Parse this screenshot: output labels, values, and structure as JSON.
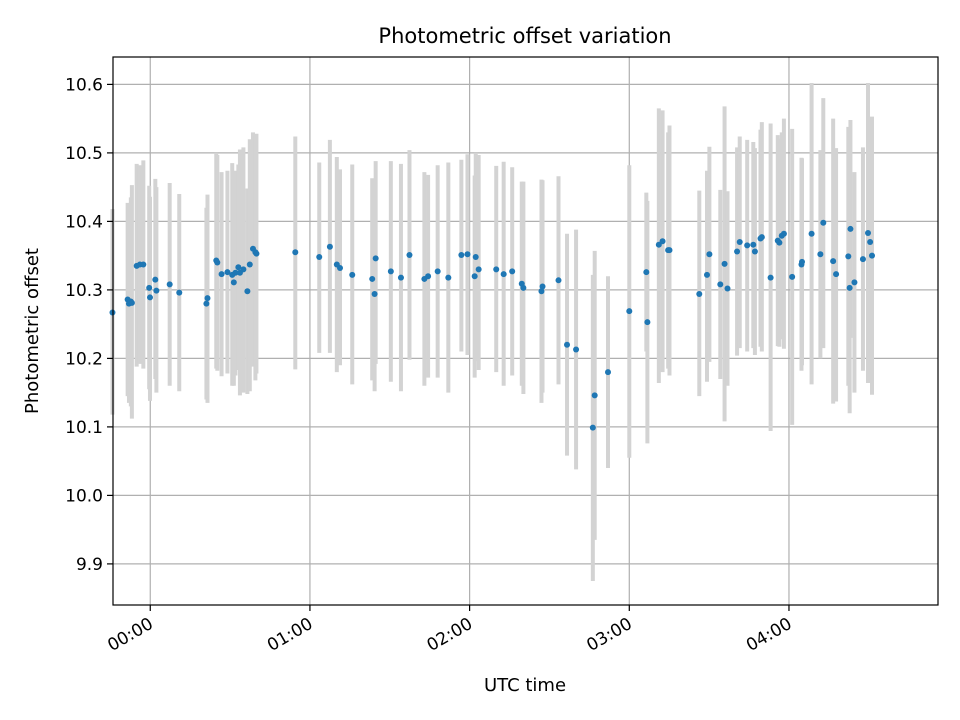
{
  "chart_data": {
    "type": "scatter",
    "title": "Photometric offset variation",
    "xlabel": "UTC time",
    "ylabel": "Photometric offset",
    "xlim_minutes": [
      -14,
      296
    ],
    "ylim": [
      9.84,
      10.64
    ],
    "x_ticks": [
      {
        "label": "00:00",
        "minutes": 0
      },
      {
        "label": "01:00",
        "minutes": 60
      },
      {
        "label": "02:00",
        "minutes": 120
      },
      {
        "label": "03:00",
        "minutes": 180
      },
      {
        "label": "04:00",
        "minutes": 240
      }
    ],
    "y_ticks": [
      {
        "label": "9.9",
        "value": 9.9
      },
      {
        "label": "10.0",
        "value": 10.0
      },
      {
        "label": "10.1",
        "value": 10.1
      },
      {
        "label": "10.2",
        "value": 10.2
      },
      {
        "label": "10.3",
        "value": 10.3
      },
      {
        "label": "10.4",
        "value": 10.4
      },
      {
        "label": "10.5",
        "value": 10.5
      },
      {
        "label": "10.6",
        "value": 10.6
      }
    ],
    "grid": true,
    "colors": {
      "points": "#1f77b4",
      "errorbars": "#d3d3d3",
      "grid": "#b0b0b0"
    },
    "series": [
      {
        "x_minutes": [
          -14.2,
          -8.5,
          -8.0,
          -7.3,
          -6.9,
          -5.1,
          -3.9,
          -2.6,
          -0.4,
          -0.1,
          1.9,
          2.3,
          7.3,
          10.9,
          21.1,
          21.5,
          24.8,
          25.2,
          26.8,
          29.0,
          30.8,
          31.4,
          32.0,
          33.1,
          33.7,
          35.0,
          36.5,
          37.4,
          38.6,
          39.5,
          39.9,
          54.5,
          63.5,
          67.5,
          70.1,
          71.3,
          75.9,
          83.4,
          84.3,
          84.7,
          90.4,
          94.2,
          97.4,
          103.0,
          104.4,
          108.0,
          112.0,
          116.9,
          119.2,
          121.9,
          122.3,
          123.4,
          130.0,
          132.8,
          136.0,
          139.6,
          140.2,
          147.0,
          147.4,
          153.4,
          156.6,
          160.0,
          167.0,
          166.3,
          172.0,
          180.0,
          186.4,
          186.8,
          191.1,
          192.5,
          194.6,
          195.1,
          206.3,
          209.2,
          210.1,
          214.2,
          215.8,
          216.9,
          220.5,
          221.5,
          224.3,
          226.6,
          227.2,
          229.3,
          229.8,
          233.1,
          235.8,
          236.4,
          238.1,
          237.3,
          241.2,
          244.7,
          244.9,
          248.5,
          251.8,
          252.9,
          256.6,
          257.7,
          262.3,
          262.8,
          263.1,
          264.6,
          267.8,
          269.7,
          270.5,
          271.2
        ],
        "y": [
          10.267,
          10.286,
          10.28,
          10.283,
          10.281,
          10.335,
          10.337,
          10.337,
          10.303,
          10.289,
          10.315,
          10.299,
          10.308,
          10.296,
          10.28,
          10.288,
          10.343,
          10.34,
          10.323,
          10.326,
          10.322,
          10.311,
          10.325,
          10.333,
          10.325,
          10.33,
          10.298,
          10.337,
          10.36,
          10.355,
          10.353,
          10.355,
          10.348,
          10.363,
          10.337,
          10.332,
          10.322,
          10.316,
          10.294,
          10.346,
          10.327,
          10.318,
          10.351,
          10.316,
          10.32,
          10.327,
          10.318,
          10.351,
          10.352,
          10.32,
          10.348,
          10.33,
          10.33,
          10.323,
          10.327,
          10.309,
          10.303,
          10.298,
          10.305,
          10.314,
          10.22,
          10.213,
          10.146,
          10.099,
          10.18,
          10.269,
          10.326,
          10.253,
          10.366,
          10.371,
          10.358,
          10.358,
          10.294,
          10.322,
          10.352,
          10.308,
          10.338,
          10.302,
          10.356,
          10.37,
          10.365,
          10.366,
          10.356,
          10.375,
          10.377,
          10.318,
          10.372,
          10.369,
          10.382,
          10.379,
          10.319,
          10.337,
          10.341,
          10.382,
          10.352,
          10.398,
          10.342,
          10.323,
          10.349,
          10.303,
          10.389,
          10.311,
          10.345,
          10.383,
          10.37,
          10.35
        ],
        "err_low": [
          10.118,
          10.145,
          10.135,
          10.13,
          10.112,
          10.188,
          10.192,
          10.185,
          10.155,
          10.138,
          10.17,
          10.15,
          10.16,
          10.152,
          10.14,
          10.135,
          10.185,
          10.182,
          10.174,
          10.178,
          10.16,
          10.16,
          10.175,
          10.183,
          10.146,
          10.15,
          10.148,
          10.152,
          10.188,
          10.168,
          10.178,
          10.184,
          10.208,
          10.208,
          10.18,
          10.19,
          10.162,
          10.168,
          10.152,
          10.192,
          10.166,
          10.152,
          10.198,
          10.16,
          10.172,
          10.172,
          10.15,
          10.21,
          10.205,
          10.172,
          10.196,
          10.183,
          10.18,
          10.16,
          10.175,
          10.16,
          10.148,
          10.135,
          10.15,
          10.162,
          10.058,
          10.038,
          9.935,
          9.875,
          10.04,
          10.055,
          10.21,
          10.076,
          10.164,
          10.18,
          10.185,
          10.175,
          10.145,
          10.166,
          10.195,
          10.17,
          10.108,
          10.16,
          10.204,
          10.215,
          10.21,
          10.215,
          10.205,
          10.217,
          10.21,
          10.094,
          10.218,
          10.217,
          10.214,
          10.228,
          10.103,
          10.182,
          10.19,
          10.162,
          10.2,
          10.215,
          10.134,
          10.137,
          10.16,
          10.12,
          10.23,
          10.15,
          10.182,
          10.164,
          10.188,
          10.147
        ],
        "err_high": [
          10.418,
          10.427,
          10.422,
          10.435,
          10.453,
          10.484,
          10.482,
          10.489,
          10.452,
          10.436,
          10.462,
          10.45,
          10.456,
          10.44,
          10.42,
          10.439,
          10.5,
          10.497,
          10.472,
          10.474,
          10.485,
          10.462,
          10.474,
          10.483,
          10.505,
          10.508,
          10.448,
          10.52,
          10.53,
          10.525,
          10.528,
          10.524,
          10.486,
          10.519,
          10.494,
          10.476,
          10.483,
          10.463,
          10.436,
          10.488,
          10.488,
          10.484,
          10.504,
          10.472,
          10.468,
          10.482,
          10.486,
          10.49,
          10.498,
          10.467,
          10.5,
          10.497,
          10.481,
          10.487,
          10.479,
          10.458,
          10.458,
          10.461,
          10.46,
          10.466,
          10.382,
          10.388,
          10.357,
          10.322,
          10.32,
          10.482,
          10.442,
          10.43,
          10.565,
          10.562,
          10.53,
          10.54,
          10.445,
          10.474,
          10.509,
          10.446,
          10.568,
          10.444,
          10.508,
          10.524,
          10.519,
          10.516,
          10.507,
          10.534,
          10.545,
          10.543,
          10.526,
          10.521,
          10.55,
          10.53,
          10.535,
          10.493,
          10.492,
          10.602,
          10.504,
          10.58,
          10.55,
          10.507,
          10.538,
          10.487,
          10.548,
          10.472,
          10.508,
          10.602,
          10.552,
          10.553
        ]
      }
    ]
  }
}
